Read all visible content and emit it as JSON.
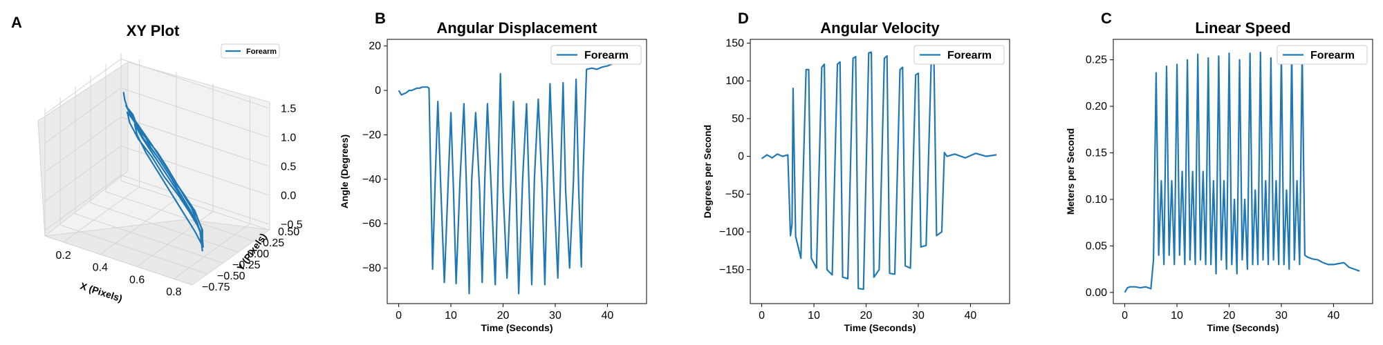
{
  "figure": {
    "color": "#1f77b4"
  },
  "chart_data": [
    {
      "panel": "A",
      "type": "line",
      "projection": "3d",
      "title": "XY Plot",
      "xlabel": "X (Pixels)",
      "ylabel": "Y (Pixels)",
      "zlabel": "",
      "xlim": [
        0.1,
        0.9
      ],
      "ylim": [
        -0.75,
        0.5
      ],
      "zlim": [
        -0.6,
        1.6
      ],
      "xticks": [
        "0.2",
        "0.4",
        "0.6",
        "0.8"
      ],
      "yticks": [
        "−0.75",
        "−0.50",
        "−0.25",
        "0.00",
        "0.25",
        "0.50"
      ],
      "zticks": [
        "−0.5",
        "0.0",
        "0.5",
        "1.0",
        "1.5"
      ],
      "legend": {
        "entries": [
          "Forearm"
        ],
        "position": "top-right"
      },
      "grid": true,
      "series": [
        {
          "name": "Forearm",
          "x": [
            0.13,
            0.16,
            0.2,
            0.25,
            0.3,
            0.36,
            0.42,
            0.5,
            0.58,
            0.66,
            0.74,
            0.8,
            0.84,
            0.82,
            0.76,
            0.68,
            0.6,
            0.52,
            0.44,
            0.36,
            0.28,
            0.22,
            0.18,
            0.24,
            0.32,
            0.4,
            0.48,
            0.56,
            0.64,
            0.72,
            0.78,
            0.83,
            0.8,
            0.72,
            0.62,
            0.52,
            0.42,
            0.32,
            0.24,
            0.2,
            0.26,
            0.34,
            0.44,
            0.54,
            0.64,
            0.74,
            0.81,
            0.85,
            0.78,
            0.68,
            0.58,
            0.48,
            0.38,
            0.3,
            0.26,
            0.32,
            0.42,
            0.52,
            0.62,
            0.72,
            0.8,
            0.84
          ],
          "y": [
            0.45,
            0.38,
            0.3,
            0.24,
            0.16,
            0.1,
            0.02,
            -0.06,
            -0.14,
            -0.22,
            -0.3,
            -0.36,
            -0.4,
            -0.34,
            -0.26,
            -0.18,
            -0.1,
            -0.02,
            0.06,
            0.12,
            0.2,
            0.28,
            0.34,
            0.26,
            0.18,
            0.1,
            0.02,
            -0.06,
            -0.14,
            -0.22,
            -0.3,
            -0.38,
            -0.32,
            -0.24,
            -0.14,
            -0.06,
            0.04,
            0.12,
            0.22,
            0.3,
            0.24,
            0.14,
            0.06,
            -0.04,
            -0.12,
            -0.22,
            -0.32,
            -0.42,
            -0.34,
            -0.24,
            -0.14,
            -0.04,
            0.06,
            0.16,
            0.24,
            0.18,
            0.08,
            -0.02,
            -0.12,
            -0.22,
            -0.32,
            -0.4
          ],
          "z": [
            1.0,
            0.95,
            0.92,
            0.9,
            0.82,
            0.76,
            0.68,
            0.58,
            0.46,
            0.32,
            0.18,
            0.02,
            -0.12,
            -0.05,
            0.08,
            0.2,
            0.34,
            0.48,
            0.6,
            0.7,
            0.78,
            0.86,
            0.9,
            0.84,
            0.74,
            0.64,
            0.52,
            0.4,
            0.28,
            0.14,
            0.0,
            -0.15,
            -0.08,
            0.06,
            0.2,
            0.34,
            0.5,
            0.64,
            0.76,
            0.84,
            0.78,
            0.66,
            0.52,
            0.38,
            0.24,
            0.1,
            -0.06,
            -0.25,
            -0.12,
            0.04,
            0.2,
            0.36,
            0.52,
            0.66,
            0.74,
            0.62,
            0.48,
            0.34,
            0.2,
            0.06,
            -0.1,
            -0.35
          ]
        }
      ]
    },
    {
      "panel": "B",
      "type": "line",
      "title": "Angular Displacement",
      "xlabel": "Time (Seconds)",
      "ylabel": "Angle (Degrees)",
      "xlim": [
        -2.2,
        47.5
      ],
      "ylim": [
        -96,
        23
      ],
      "xticks": [
        0,
        10,
        20,
        30,
        40
      ],
      "yticks": [
        -80,
        -60,
        -40,
        -20,
        0,
        20
      ],
      "grid": false,
      "legend": {
        "entries": [
          "Forearm"
        ],
        "position": "top-right"
      },
      "series": [
        {
          "name": "Forearm",
          "x": [
            0,
            0.5,
            1,
            1.5,
            2,
            2.5,
            3,
            3.5,
            4,
            4.5,
            5,
            5.5,
            5.8,
            6.5,
            7.0,
            7.5,
            8.0,
            8.75,
            9.5,
            10.0,
            10.5,
            11.0,
            11.75,
            12.5,
            13.0,
            13.5,
            14.0,
            14.75,
            15.5,
            16.0,
            16.5,
            17.0,
            17.75,
            18.5,
            19.0,
            19.5,
            20.0,
            20.75,
            21.5,
            22.0,
            22.5,
            23.0,
            23.75,
            24.5,
            25.0,
            25.5,
            26.0,
            26.75,
            27.5,
            28.0,
            28.5,
            29.0,
            29.75,
            30.5,
            31.0,
            31.5,
            32.0,
            32.75,
            33.5,
            34.0,
            34.5,
            35.0,
            35.3,
            36,
            37,
            38,
            39,
            40,
            41,
            42,
            43,
            44,
            45
          ],
          "y": [
            0,
            -2,
            -1.5,
            -1,
            0,
            0,
            0.5,
            1,
            1,
            1.5,
            1.5,
            1.5,
            1,
            -80.5,
            -40,
            -5,
            -40,
            -86.5,
            -40,
            -10,
            -45,
            -87.0,
            -40,
            -6,
            -45,
            -91.5,
            -40,
            -10,
            -45,
            -86.5,
            -40,
            -6,
            -45,
            -87.5,
            -40,
            7.5,
            -45,
            -84.5,
            -40,
            -5,
            -45,
            -91.5,
            -40,
            -6,
            -45,
            -87.5,
            -40,
            -4,
            -45,
            -87.5,
            -40,
            3,
            -45,
            -84.5,
            -40,
            3.5,
            -45,
            -80,
            -40,
            5,
            -45,
            -79.5,
            -40,
            9.5,
            10,
            9.5,
            10.5,
            11,
            12,
            13,
            14.5,
            16,
            17
          ]
        }
      ]
    },
    {
      "panel": "D",
      "type": "line",
      "title": "Angular Velocity",
      "xlabel": "Time (Seconds)",
      "ylabel": "Degrees per Second",
      "xlim": [
        -2.2,
        47.5
      ],
      "ylim": [
        -195,
        155
      ],
      "xticks": [
        0,
        10,
        20,
        30,
        40
      ],
      "yticks": [
        -150,
        -100,
        -50,
        0,
        50,
        100,
        150
      ],
      "grid": false,
      "legend": {
        "entries": [
          "Forearm"
        ],
        "position": "top-right"
      },
      "series": [
        {
          "name": "Forearm",
          "x": [
            0,
            1,
            2,
            3,
            4,
            5,
            5.5,
            5.8,
            6.0,
            6.5,
            7.5,
            8.5,
            9.0,
            9.5,
            10.5,
            11.5,
            12.0,
            12.5,
            13.5,
            14.5,
            15.0,
            15.5,
            16.5,
            17.5,
            18.0,
            18.5,
            19.5,
            20.5,
            21.0,
            21.5,
            22.5,
            23.5,
            24.0,
            24.5,
            25.5,
            26.5,
            27.0,
            27.5,
            28.5,
            29.5,
            30.0,
            30.5,
            31.5,
            32.5,
            33.0,
            33.5,
            34.5,
            35.0,
            35.5,
            37,
            39,
            41,
            43,
            45
          ],
          "y": [
            -3,
            2,
            -2,
            3,
            0,
            2,
            -105,
            -90,
            90,
            -106,
            -135,
            115,
            115,
            -135,
            -148,
            118,
            122,
            -150,
            -157,
            122,
            125,
            -160,
            -162,
            130,
            132,
            -175,
            -176,
            137,
            138,
            -160,
            -150,
            130,
            133,
            -155,
            -156,
            115,
            118,
            -145,
            -148,
            108,
            110,
            -120,
            -118,
            130,
            128,
            -105,
            -100,
            5,
            0,
            3,
            -2,
            4,
            0,
            2
          ]
        }
      ]
    },
    {
      "panel": "C",
      "type": "line",
      "title": "Linear Speed",
      "xlabel": "Time (Seconds)",
      "ylabel": "Meters per Second",
      "xlim": [
        -2.2,
        47.5
      ],
      "ylim": [
        -0.012,
        0.272
      ],
      "xticks": [
        0,
        10,
        20,
        30,
        40
      ],
      "yticks": [
        "0.00",
        "0.05",
        "0.10",
        "0.15",
        "0.20",
        "0.25"
      ],
      "grid": false,
      "legend": {
        "entries": [
          "Forearm"
        ],
        "position": "top-right"
      },
      "series": [
        {
          "name": "Forearm",
          "x": [
            0,
            0.5,
            1,
            2,
            3,
            4,
            5,
            5.5,
            6.0,
            6.5,
            7.0,
            7.5,
            8.0,
            8.5,
            9.0,
            9.5,
            10.0,
            10.5,
            11.0,
            11.5,
            12.0,
            12.5,
            13.0,
            13.5,
            14.0,
            14.5,
            15.0,
            15.5,
            16.0,
            16.5,
            17.0,
            17.5,
            18.0,
            18.5,
            19.0,
            19.5,
            20.0,
            20.5,
            21.0,
            21.5,
            22.0,
            22.5,
            23.0,
            23.5,
            24.0,
            24.5,
            25.0,
            25.5,
            26.0,
            26.5,
            27.0,
            27.5,
            28.0,
            28.5,
            29.0,
            29.5,
            30.0,
            30.5,
            31.0,
            31.5,
            32.0,
            32.5,
            33.0,
            33.5,
            34.0,
            34.5,
            35.0,
            36,
            37,
            38,
            39,
            40,
            41,
            42,
            43,
            44,
            45
          ],
          "y": [
            0.0,
            0.005,
            0.006,
            0.006,
            0.005,
            0.006,
            0.004,
            0.035,
            0.236,
            0.04,
            0.12,
            0.03,
            0.243,
            0.04,
            0.12,
            0.03,
            0.245,
            0.04,
            0.13,
            0.03,
            0.25,
            0.035,
            0.13,
            0.03,
            0.256,
            0.035,
            0.13,
            0.03,
            0.252,
            0.03,
            0.12,
            0.02,
            0.254,
            0.035,
            0.12,
            0.025,
            0.257,
            0.03,
            0.1,
            0.02,
            0.25,
            0.035,
            0.1,
            0.025,
            0.257,
            0.03,
            0.11,
            0.03,
            0.258,
            0.035,
            0.12,
            0.03,
            0.252,
            0.035,
            0.12,
            0.03,
            0.257,
            0.03,
            0.11,
            0.025,
            0.26,
            0.035,
            0.12,
            0.03,
            0.258,
            0.04,
            0.038,
            0.036,
            0.035,
            0.032,
            0.03,
            0.03,
            0.031,
            0.032,
            0.027,
            0.025,
            0.023
          ]
        }
      ]
    }
  ]
}
